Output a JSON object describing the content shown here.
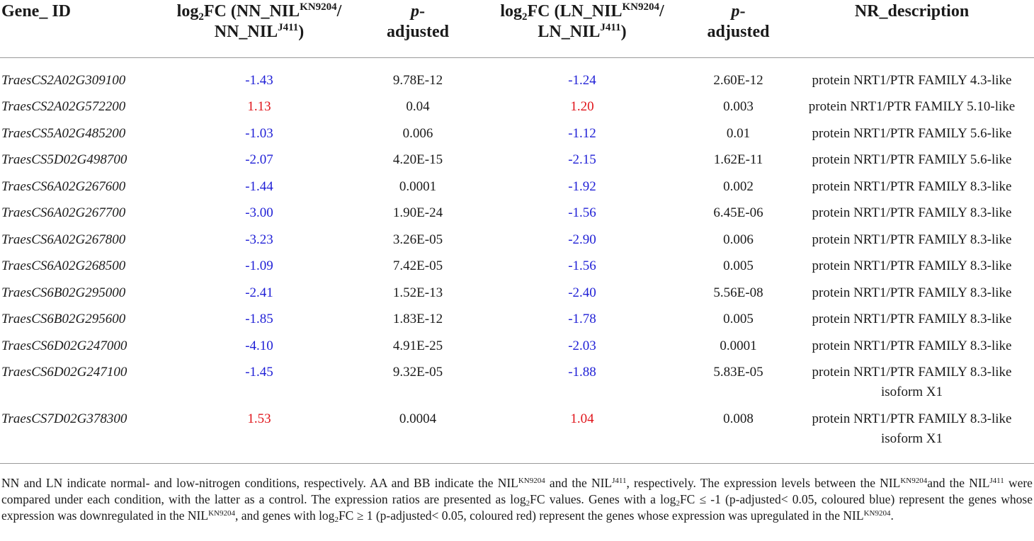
{
  "header": {
    "gene_id": "Gene_ ID",
    "log2fc_prefix": "log",
    "log2fc_sub": "2",
    "fc1_open": "FC (NN_NIL",
    "fc1_sup1": "KN9204",
    "fc1_slash": "/",
    "fc1_line2": "NN_NIL",
    "fc1_sup2": "J411",
    "close": ")",
    "p_italic": "p",
    "p_dash": "-",
    "p_line2": "adjusted",
    "fc2_open": "FC (LN_NIL",
    "fc2_sup1": "KN9204",
    "fc2_slash": "/",
    "fc2_line2": "LN_NIL",
    "fc2_sup2": "J411",
    "nr_description": "NR_description"
  },
  "rows": [
    {
      "gene": "TraesCS2A02G309100",
      "fc_nn": "-1.43",
      "p_nn": "9.78E-12",
      "fc_ln": "-1.24",
      "p_ln": "2.60E-12",
      "desc1": "protein NRT1/PTR FAMILY 4.3-like",
      "desc2": ""
    },
    {
      "gene": "TraesCS2A02G572200",
      "fc_nn": "1.13",
      "p_nn": "0.04",
      "fc_ln": "1.20",
      "p_ln": "0.003",
      "desc1": "protein NRT1/PTR FAMILY 5.10-like",
      "desc2": ""
    },
    {
      "gene": "TraesCS5A02G485200",
      "fc_nn": "-1.03",
      "p_nn": "0.006",
      "fc_ln": "-1.12",
      "p_ln": "0.01",
      "desc1": "protein NRT1/PTR FAMILY 5.6-like",
      "desc2": ""
    },
    {
      "gene": "TraesCS5D02G498700",
      "fc_nn": "-2.07",
      "p_nn": "4.20E-15",
      "fc_ln": "-2.15",
      "p_ln": "1.62E-11",
      "desc1": "protein NRT1/PTR FAMILY 5.6-like",
      "desc2": ""
    },
    {
      "gene": "TraesCS6A02G267600",
      "fc_nn": "-1.44",
      "p_nn": "0.0001",
      "fc_ln": "-1.92",
      "p_ln": "0.002",
      "desc1": "protein NRT1/PTR FAMILY 8.3-like",
      "desc2": ""
    },
    {
      "gene": "TraesCS6A02G267700",
      "fc_nn": "-3.00",
      "p_nn": "1.90E-24",
      "fc_ln": "-1.56",
      "p_ln": "6.45E-06",
      "desc1": "protein NRT1/PTR FAMILY 8.3-like",
      "desc2": ""
    },
    {
      "gene": "TraesCS6A02G267800",
      "fc_nn": "-3.23",
      "p_nn": "3.26E-05",
      "fc_ln": "-2.90",
      "p_ln": "0.006",
      "desc1": "protein NRT1/PTR FAMILY 8.3-like",
      "desc2": ""
    },
    {
      "gene": "TraesCS6A02G268500",
      "fc_nn": "-1.09",
      "p_nn": "7.42E-05",
      "fc_ln": "-1.56",
      "p_ln": "0.005",
      "desc1": "protein NRT1/PTR FAMILY 8.3-like",
      "desc2": ""
    },
    {
      "gene": "TraesCS6B02G295000",
      "fc_nn": "-2.41",
      "p_nn": "1.52E-13",
      "fc_ln": "-2.40",
      "p_ln": "5.56E-08",
      "desc1": "protein NRT1/PTR FAMILY 8.3-like",
      "desc2": ""
    },
    {
      "gene": "TraesCS6B02G295600",
      "fc_nn": "-1.85",
      "p_nn": "1.83E-12",
      "fc_ln": "-1.78",
      "p_ln": "0.005",
      "desc1": "protein NRT1/PTR FAMILY 8.3-like",
      "desc2": ""
    },
    {
      "gene": "TraesCS6D02G247000",
      "fc_nn": "-4.10",
      "p_nn": "4.91E-25",
      "fc_ln": "-2.03",
      "p_ln": "0.0001",
      "desc1": "protein NRT1/PTR FAMILY 8.3-like",
      "desc2": ""
    },
    {
      "gene": "TraesCS6D02G247100",
      "fc_nn": "-1.45",
      "p_nn": "9.32E-05",
      "fc_ln": "-1.88",
      "p_ln": "5.83E-05",
      "desc1": "protein NRT1/PTR FAMILY 8.3-like",
      "desc2": "isoform X1"
    },
    {
      "gene": "TraesCS7D02G378300",
      "fc_nn": "1.53",
      "p_nn": "0.0004",
      "fc_ln": "1.04",
      "p_ln": "0.008",
      "desc1": "protein NRT1/PTR FAMILY 8.3-like",
      "desc2": "isoform X1"
    }
  ],
  "note": {
    "t1": "NN and LN indicate normal- and low-nitrogen conditions, respectively. AA and BB indicate the NIL",
    "s1": "KN9204",
    "t2": " and the NIL",
    "s2": "J411",
    "t3": ", respectively. The expression levels between the NIL",
    "s3": "KN9204",
    "t4": "and the NIL",
    "s4": "J411",
    "t5": " were compared under each condition, with the latter as a control. The expression ratios are presented as log",
    "b5": "2",
    "t6": "FC values. Genes with a log",
    "b6": "2",
    "t7": "FC ≤ -1 (p-adjusted< 0.05, coloured blue) represent the genes whose expression was downregulated in the NIL",
    "s7": "KN9204",
    "t8": ", and genes with log",
    "b8": "2",
    "t9": "FC ≥ 1 (p-adjusted< 0.05, coloured red) represent the genes whose expression was upregulated in the NIL",
    "s9": "KN9204",
    "t10": "."
  },
  "colors": {
    "downregulated": "#1f1fd6",
    "upregulated": "#e0141a"
  }
}
